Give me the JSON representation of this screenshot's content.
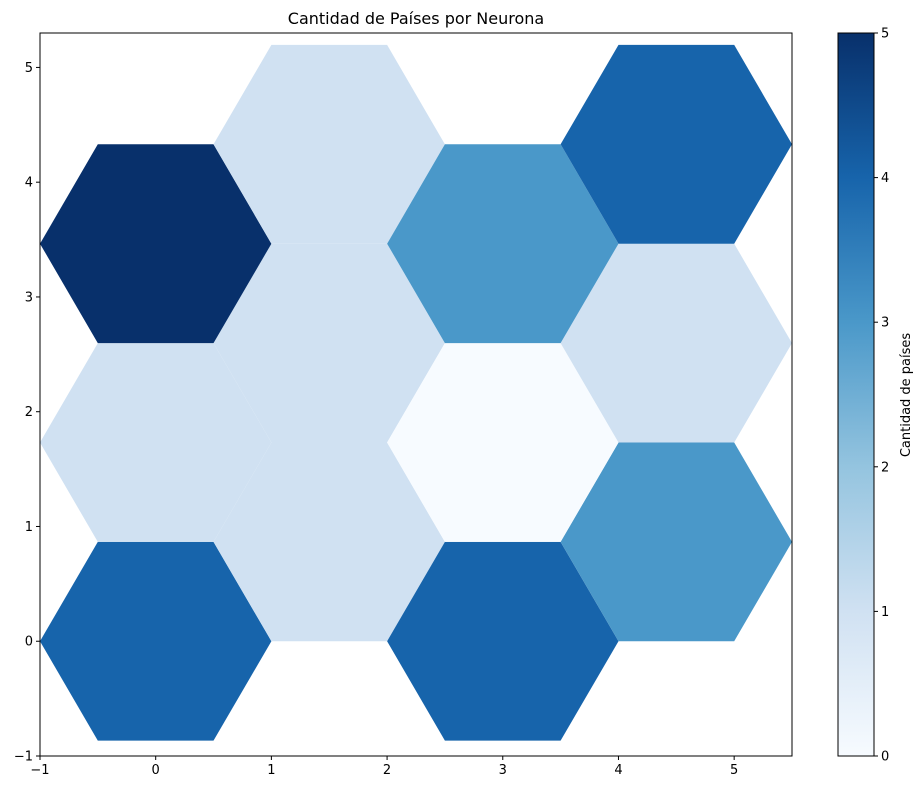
{
  "chart_data": {
    "type": "heatmap",
    "layout": "hexagonal",
    "title": "Cantidad de Países por Neurona",
    "xlabel": "",
    "ylabel": "",
    "xlim": [
      -1,
      5.5
    ],
    "ylim": [
      -1,
      5.3
    ],
    "xticks": [
      -1,
      0,
      1,
      2,
      3,
      4,
      5
    ],
    "yticks": [
      -1,
      0,
      1,
      2,
      3,
      4,
      5
    ],
    "colormap": "Blues",
    "grid": false,
    "cells": [
      {
        "x": 0,
        "y": 0,
        "value": 4
      },
      {
        "x": 1.5,
        "y": 0.866,
        "value": 1
      },
      {
        "x": 3,
        "y": 0,
        "value": 4
      },
      {
        "x": 4.5,
        "y": 0.866,
        "value": 3
      },
      {
        "x": 0,
        "y": 1.732,
        "value": 1
      },
      {
        "x": 1.5,
        "y": 2.598,
        "value": 1
      },
      {
        "x": 3,
        "y": 1.732,
        "value": 0
      },
      {
        "x": 4.5,
        "y": 2.598,
        "value": 1
      },
      {
        "x": 0,
        "y": 3.464,
        "value": 5
      },
      {
        "x": 1.5,
        "y": 4.33,
        "value": 1
      },
      {
        "x": 3,
        "y": 3.464,
        "value": 3
      },
      {
        "x": 4.5,
        "y": 4.33,
        "value": 4
      }
    ],
    "colorbar": {
      "label": "Cantidad de países",
      "min": 0,
      "max": 5,
      "ticks": [
        0,
        1,
        2,
        3,
        4,
        5
      ],
      "colors": [
        "#f7fbff",
        "#d0e1f2",
        "#94c4df",
        "#4a98c9",
        "#1764ab",
        "#08306b"
      ]
    }
  }
}
